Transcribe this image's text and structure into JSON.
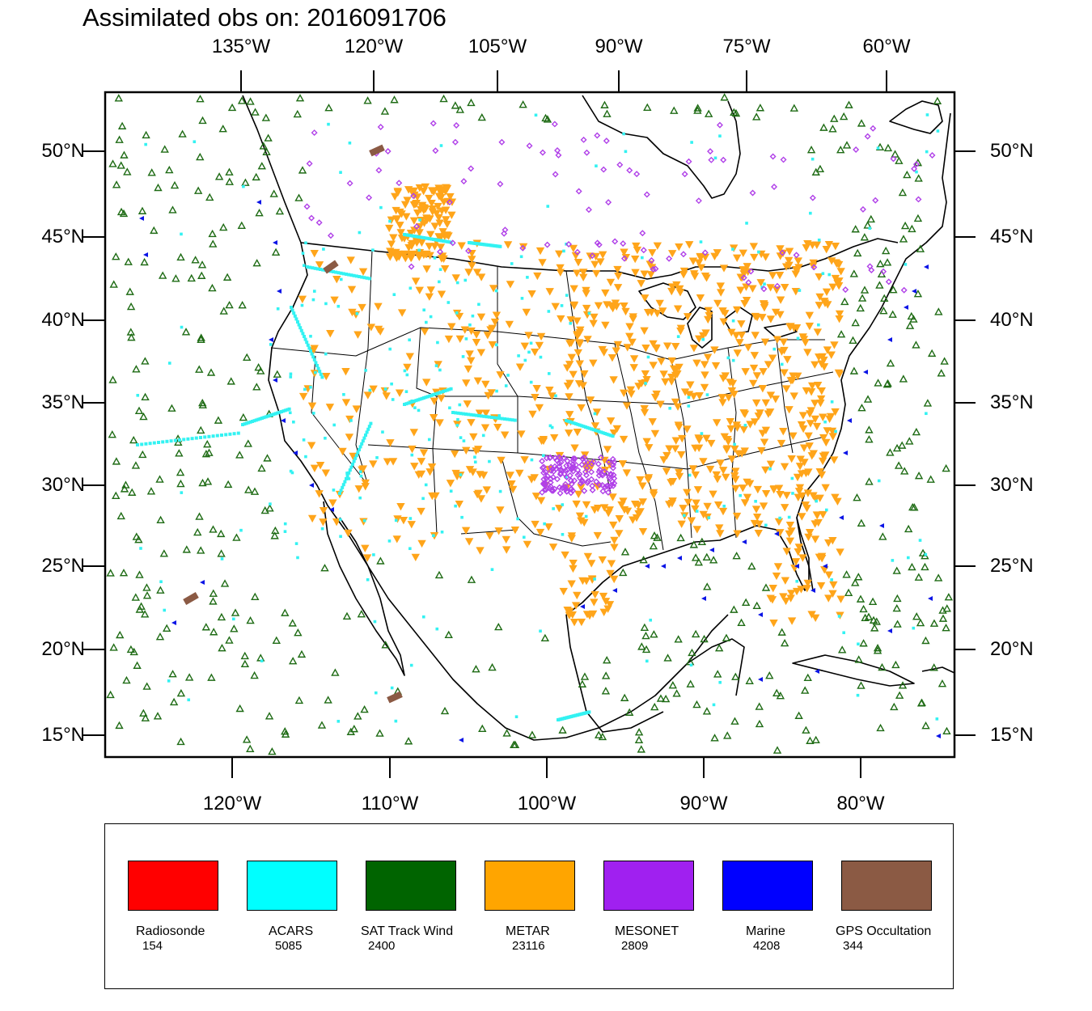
{
  "title": "Assimilated obs on: 2016091706",
  "top_lon_labels": [
    "135°W",
    "120°W",
    "105°W",
    "90°W",
    "75°W",
    "60°W"
  ],
  "bottom_lon_labels": [
    "120°W",
    "110°W",
    "100°W",
    "90°W",
    "80°W"
  ],
  "lat_labels": [
    "50°N",
    "45°N",
    "40°N",
    "35°N",
    "30°N",
    "25°N",
    "20°N",
    "15°N"
  ],
  "legend": [
    {
      "name": "Radiosonde",
      "count": "154",
      "color": "#ff0000"
    },
    {
      "name": "ACARS",
      "count": "5085",
      "color": "#00ffff"
    },
    {
      "name": "SAT Track Wind",
      "count": "2400",
      "color": "#006400"
    },
    {
      "name": "METAR",
      "count": "23116",
      "color": "#ffa500"
    },
    {
      "name": "MESONET",
      "count": "2809",
      "color": "#a020f0"
    },
    {
      "name": "Marine",
      "count": "4208",
      "color": "#0000ff"
    },
    {
      "name": "GPS Occultation",
      "count": "344",
      "color": "#8b5a44"
    }
  ],
  "colors": {
    "sat_track_wind": "#1e6b14",
    "acars": "#33f2f2",
    "metar": "#ffa51a",
    "mesonet": "#b040e8",
    "marine": "#0a14e6",
    "gps": "#8b5a44"
  }
}
